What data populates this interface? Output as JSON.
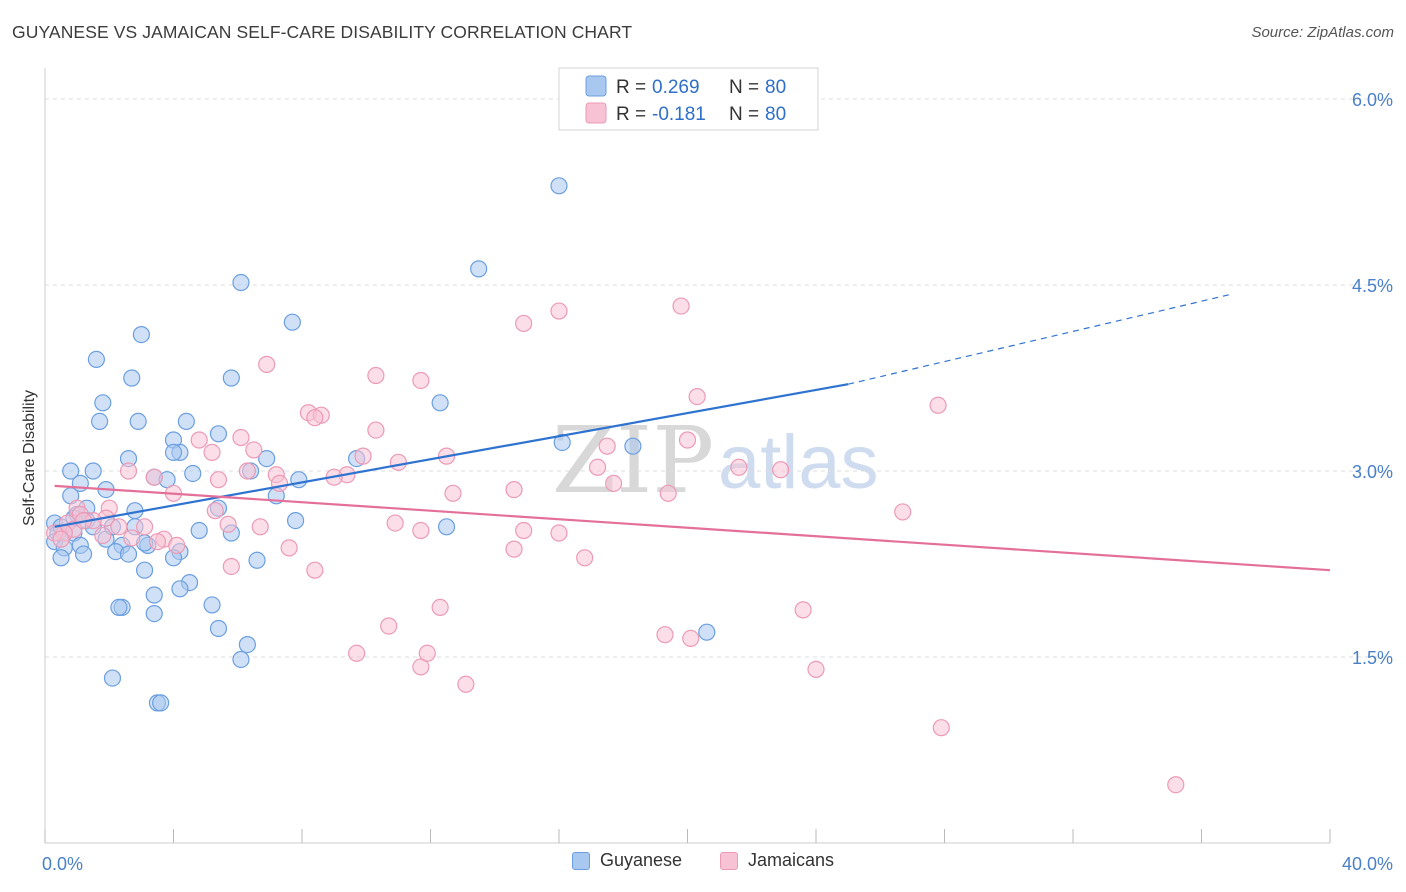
{
  "header": {
    "title": "GUYANESE VS JAMAICAN SELF-CARE DISABILITY CORRELATION CHART",
    "source": "Source: ZipAtlas.com"
  },
  "watermark": {
    "zip": "ZIP",
    "atlas": "atlas"
  },
  "colors": {
    "blue_fill": "#a9c8f0",
    "blue_stroke": "#6b9fe0",
    "blue_line": "#2f73d0",
    "pink_fill": "#f7c3d4",
    "pink_stroke": "#ec9ab5",
    "pink_line": "#e4709a",
    "tick_text": "#4a80c8",
    "grid": "#dddddd"
  },
  "chart_data": {
    "type": "scatter",
    "title": "GUYANESE VS JAMAICAN SELF-CARE DISABILITY CORRELATION CHART",
    "xlabel": "",
    "ylabel": "Self-Care Disability",
    "xlim": [
      0,
      40
    ],
    "ylim": [
      0,
      6.25
    ],
    "x_tick_labels": [
      {
        "value": 0,
        "label": "0.0%"
      },
      {
        "value": 40,
        "label": "40.0%"
      }
    ],
    "y_tick_labels": [
      {
        "value": 1.5,
        "label": "1.5%"
      },
      {
        "value": 3.0,
        "label": "3.0%"
      },
      {
        "value": 4.5,
        "label": "4.5%"
      },
      {
        "value": 6.0,
        "label": "6.0%"
      }
    ],
    "grid": "horizontal dashed",
    "legend": {
      "placement": "top-center",
      "entries": [
        {
          "series": "Guyanese",
          "r_label": "R =",
          "r_value": "0.269",
          "n_label": "N =",
          "n_value": "80"
        },
        {
          "series": "Jamaicans",
          "r_label": "R =",
          "r_value": "-0.181",
          "n_label": "N =",
          "n_value": "80"
        }
      ]
    },
    "series": [
      {
        "name": "Guyanese",
        "color": "blue",
        "trend": {
          "x0": 0.3,
          "y0": 2.55,
          "x1": 25.0,
          "y1": 3.7,
          "dash_to_x": 37.0,
          "dash_to_y": 4.43
        },
        "points": [
          [
            16.0,
            5.3
          ],
          [
            13.5,
            4.63
          ],
          [
            6.1,
            4.52
          ],
          [
            7.7,
            4.2
          ],
          [
            3.0,
            4.1
          ],
          [
            1.6,
            3.9
          ],
          [
            2.7,
            3.75
          ],
          [
            5.8,
            3.75
          ],
          [
            1.8,
            3.55
          ],
          [
            12.3,
            3.55
          ],
          [
            1.7,
            3.4
          ],
          [
            2.9,
            3.4
          ],
          [
            4.4,
            3.4
          ],
          [
            5.4,
            3.3
          ],
          [
            4.0,
            3.25
          ],
          [
            4.2,
            3.15
          ],
          [
            4.0,
            3.15
          ],
          [
            6.9,
            3.1
          ],
          [
            9.7,
            3.1
          ],
          [
            2.6,
            3.1
          ],
          [
            18.3,
            3.2
          ],
          [
            16.1,
            3.23
          ],
          [
            0.8,
            3.0
          ],
          [
            1.5,
            3.0
          ],
          [
            4.6,
            2.98
          ],
          [
            3.4,
            2.95
          ],
          [
            6.4,
            3.0
          ],
          [
            1.1,
            2.9
          ],
          [
            3.8,
            2.93
          ],
          [
            7.9,
            2.93
          ],
          [
            1.9,
            2.85
          ],
          [
            0.8,
            2.8
          ],
          [
            7.2,
            2.8
          ],
          [
            1.3,
            2.7
          ],
          [
            2.8,
            2.68
          ],
          [
            5.4,
            2.7
          ],
          [
            1.0,
            2.65
          ],
          [
            1.3,
            2.6
          ],
          [
            7.8,
            2.6
          ],
          [
            0.3,
            2.58
          ],
          [
            1.5,
            2.55
          ],
          [
            2.8,
            2.55
          ],
          [
            12.5,
            2.55
          ],
          [
            0.4,
            2.5
          ],
          [
            0.6,
            2.5
          ],
          [
            0.9,
            2.5
          ],
          [
            4.8,
            2.52
          ],
          [
            5.8,
            2.5
          ],
          [
            1.9,
            2.45
          ],
          [
            0.3,
            2.43
          ],
          [
            1.1,
            2.4
          ],
          [
            3.2,
            2.4
          ],
          [
            2.4,
            2.4
          ],
          [
            0.6,
            2.38
          ],
          [
            1.2,
            2.33
          ],
          [
            2.2,
            2.35
          ],
          [
            2.6,
            2.33
          ],
          [
            4.2,
            2.35
          ],
          [
            4.0,
            2.3
          ],
          [
            0.5,
            2.3
          ],
          [
            6.6,
            2.28
          ],
          [
            3.1,
            2.2
          ],
          [
            4.5,
            2.1
          ],
          [
            4.2,
            2.05
          ],
          [
            3.4,
            2.0
          ],
          [
            5.2,
            1.92
          ],
          [
            2.4,
            1.9
          ],
          [
            2.3,
            1.9
          ],
          [
            3.4,
            1.85
          ],
          [
            5.4,
            1.73
          ],
          [
            20.6,
            1.7
          ],
          [
            6.3,
            1.6
          ],
          [
            6.1,
            1.48
          ],
          [
            2.1,
            1.33
          ],
          [
            3.5,
            1.13
          ],
          [
            3.6,
            1.13
          ],
          [
            0.5,
            2.55
          ],
          [
            0.9,
            2.62
          ],
          [
            2.1,
            2.55
          ],
          [
            3.1,
            2.42
          ]
        ]
      },
      {
        "name": "Jamaicans",
        "color": "pink",
        "trend": {
          "x0": 0.3,
          "y0": 2.88,
          "x1": 40.0,
          "y1": 2.2
        },
        "points": [
          [
            35.2,
            0.47
          ],
          [
            27.9,
            0.93
          ],
          [
            24.0,
            1.4
          ],
          [
            23.6,
            1.88
          ],
          [
            20.1,
            1.65
          ],
          [
            19.3,
            1.68
          ],
          [
            13.1,
            1.28
          ],
          [
            12.3,
            1.9
          ],
          [
            11.7,
            1.42
          ],
          [
            11.9,
            1.53
          ],
          [
            10.7,
            1.75
          ],
          [
            9.7,
            1.53
          ],
          [
            19.8,
            4.33
          ],
          [
            16.0,
            4.29
          ],
          [
            14.9,
            4.19
          ],
          [
            20.3,
            3.6
          ],
          [
            27.8,
            3.53
          ],
          [
            6.9,
            3.86
          ],
          [
            10.3,
            3.77
          ],
          [
            11.7,
            3.73
          ],
          [
            8.2,
            3.47
          ],
          [
            8.6,
            3.45
          ],
          [
            8.4,
            3.43
          ],
          [
            10.3,
            3.33
          ],
          [
            6.1,
            3.27
          ],
          [
            4.8,
            3.25
          ],
          [
            20.0,
            3.25
          ],
          [
            17.5,
            3.2
          ],
          [
            6.5,
            3.17
          ],
          [
            5.2,
            3.15
          ],
          [
            9.9,
            3.12
          ],
          [
            12.5,
            3.12
          ],
          [
            11.0,
            3.07
          ],
          [
            17.2,
            3.03
          ],
          [
            21.6,
            3.03
          ],
          [
            22.9,
            3.01
          ],
          [
            2.6,
            3.0
          ],
          [
            6.3,
            3.0
          ],
          [
            7.2,
            2.97
          ],
          [
            9.4,
            2.97
          ],
          [
            9.0,
            2.95
          ],
          [
            3.4,
            2.95
          ],
          [
            5.4,
            2.93
          ],
          [
            7.3,
            2.9
          ],
          [
            17.7,
            2.9
          ],
          [
            14.6,
            2.85
          ],
          [
            4.0,
            2.82
          ],
          [
            12.7,
            2.82
          ],
          [
            19.4,
            2.82
          ],
          [
            1.0,
            2.7
          ],
          [
            2.0,
            2.7
          ],
          [
            5.3,
            2.68
          ],
          [
            26.7,
            2.67
          ],
          [
            1.1,
            2.65
          ],
          [
            1.9,
            2.62
          ],
          [
            1.5,
            2.6
          ],
          [
            0.7,
            2.58
          ],
          [
            5.7,
            2.57
          ],
          [
            10.9,
            2.58
          ],
          [
            2.3,
            2.55
          ],
          [
            3.1,
            2.55
          ],
          [
            6.7,
            2.55
          ],
          [
            0.9,
            2.53
          ],
          [
            14.9,
            2.52
          ],
          [
            11.7,
            2.52
          ],
          [
            16.0,
            2.5
          ],
          [
            0.6,
            2.5
          ],
          [
            1.8,
            2.48
          ],
          [
            2.7,
            2.46
          ],
          [
            3.7,
            2.45
          ],
          [
            3.5,
            2.43
          ],
          [
            4.1,
            2.4
          ],
          [
            7.6,
            2.38
          ],
          [
            14.6,
            2.37
          ],
          [
            16.8,
            2.3
          ],
          [
            5.8,
            2.23
          ],
          [
            8.4,
            2.2
          ],
          [
            0.3,
            2.5
          ],
          [
            0.5,
            2.45
          ],
          [
            1.2,
            2.6
          ]
        ]
      }
    ]
  }
}
